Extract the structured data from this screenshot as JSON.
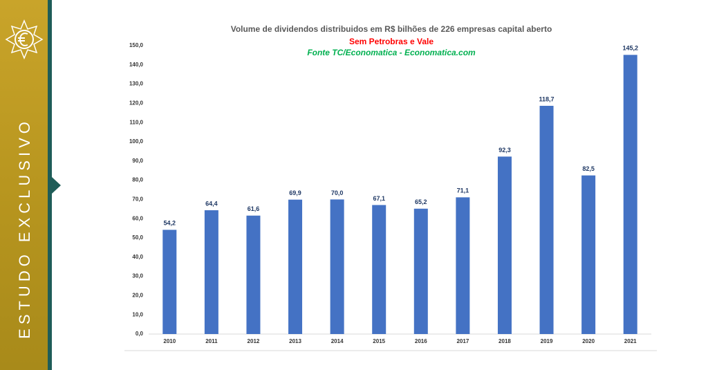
{
  "sidebar": {
    "label": "ESTUDO EXCLUSIVO"
  },
  "chart_data": {
    "type": "bar",
    "title": "Volume de dividendos distribuidos em R$ bilhões de 226 empresas capital aberto",
    "subtitle": "Sem Petrobras e Vale",
    "source": "Fonte TC/Economatica - Economatica.com",
    "categories": [
      "2010",
      "2011",
      "2012",
      "2013",
      "2014",
      "2015",
      "2016",
      "2017",
      "2018",
      "2019",
      "2020",
      "2021"
    ],
    "values": [
      54.2,
      64.4,
      61.6,
      69.9,
      70.0,
      67.1,
      65.2,
      71.1,
      92.3,
      118.7,
      82.5,
      145.2
    ],
    "value_labels": [
      "54,2",
      "64,4",
      "61,6",
      "69,9",
      "70,0",
      "67,1",
      "65,2",
      "71,1",
      "92,3",
      "118,7",
      "82,5",
      "145,2"
    ],
    "color": "#4472c4",
    "ylim": [
      0,
      150
    ],
    "yticks": [
      {
        "value": 0,
        "label": "0,0"
      },
      {
        "value": 10,
        "label": "10,0"
      },
      {
        "value": 20,
        "label": "20,0"
      },
      {
        "value": 30,
        "label": "30,0"
      },
      {
        "value": 40,
        "label": "40,0"
      },
      {
        "value": 50,
        "label": "50,0"
      },
      {
        "value": 60,
        "label": "60,0"
      },
      {
        "value": 70,
        "label": "70,0"
      },
      {
        "value": 80,
        "label": "80,0"
      },
      {
        "value": 90,
        "label": "90,0"
      },
      {
        "value": 100,
        "label": "100,0"
      },
      {
        "value": 110,
        "label": "110,0"
      },
      {
        "value": 120,
        "label": "120,0"
      },
      {
        "value": 130,
        "label": "130,0"
      },
      {
        "value": 140,
        "label": "140,0"
      },
      {
        "value": 150,
        "label": "150,0"
      }
    ],
    "grid": false
  }
}
